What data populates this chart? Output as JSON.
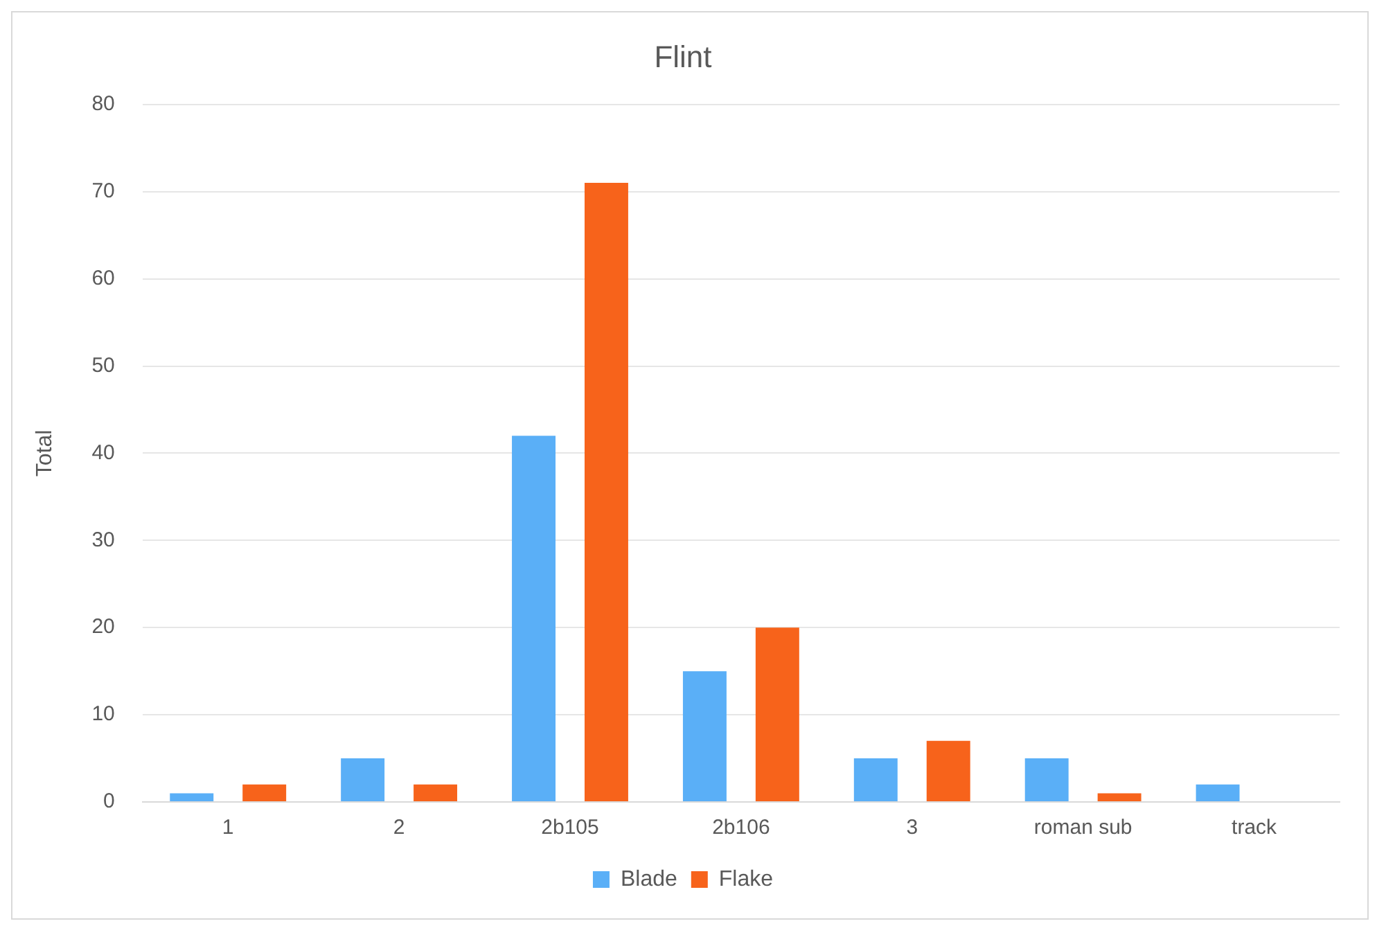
{
  "chart_data": {
    "type": "bar",
    "title": "Flint",
    "ylabel": "Total",
    "categories": [
      "1",
      "2",
      "2b105",
      "2b106",
      "3",
      "roman sub",
      "track"
    ],
    "series": [
      {
        "name": "Blade",
        "color": "#5aaff7",
        "values": [
          1,
          5,
          42,
          15,
          5,
          5,
          2
        ]
      },
      {
        "name": "Flake",
        "color": "#f7631b",
        "values": [
          2,
          2,
          71,
          20,
          7,
          1,
          null
        ]
      }
    ],
    "ylim": [
      0,
      80
    ],
    "yticks": [
      0,
      10,
      20,
      30,
      40,
      50,
      60,
      70,
      80
    ],
    "grid": "y",
    "legend": "bottom"
  }
}
